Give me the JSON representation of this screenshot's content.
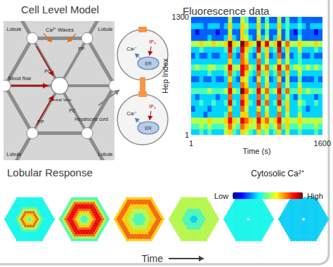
{
  "cell_level_model": {
    "title": "Cell Level Model",
    "labels": {
      "lobule": "Lobule",
      "ca_waves": "Ca²⁺ Waves",
      "blood_flow": "Blood flow",
      "central_vein": "Central Vein",
      "periportal": "PP",
      "pericentral": "PC",
      "hepatocyte_cord": "Hepatocyte cord",
      "calcium": "Ca²⁺",
      "ip3": "IP₃",
      "er": "ER"
    }
  },
  "chart_data": {
    "type": "heatmap",
    "title": "Fluorescence data",
    "x_label": "Time (s)",
    "y_label": "Hep Index",
    "xlim": [
      1,
      1600
    ],
    "xticks": [
      1,
      1600
    ],
    "ylim": [
      1,
      1300
    ],
    "yticks": [
      1,
      1300
    ],
    "color_label": "Cytosolic Ca²⁺",
    "color_range": [
      0,
      9
    ],
    "color_ticks": [
      {
        "value": 0,
        "label": "Low"
      },
      {
        "value": 9,
        "label": "High"
      }
    ],
    "cells": [
      [
        3,
        3,
        4,
        3,
        4,
        3,
        3,
        3,
        5,
        6,
        4,
        3,
        6,
        5,
        4,
        3,
        6,
        4,
        5,
        3,
        4,
        6,
        3,
        5,
        3,
        3,
        4,
        3,
        3,
        3,
        4,
        3
      ],
      [
        4,
        4,
        5,
        4,
        5,
        4,
        4,
        4,
        5,
        7,
        5,
        4,
        7,
        6,
        5,
        5,
        7,
        5,
        6,
        4,
        5,
        7,
        4,
        6,
        4,
        4,
        5,
        4,
        4,
        4,
        5,
        4
      ],
      [
        5,
        5,
        5,
        5,
        6,
        5,
        5,
        5,
        6,
        8,
        6,
        5,
        8,
        7,
        6,
        5,
        8,
        6,
        7,
        5,
        6,
        8,
        5,
        6,
        5,
        5,
        6,
        5,
        5,
        5,
        5,
        5
      ],
      [
        3,
        3,
        3,
        2,
        3,
        3,
        3,
        3,
        4,
        7,
        3,
        3,
        6,
        6,
        3,
        3,
        7,
        3,
        6,
        3,
        3,
        7,
        3,
        5,
        3,
        3,
        5,
        3,
        3,
        3,
        3,
        3
      ],
      [
        2,
        3,
        3,
        3,
        2,
        3,
        3,
        3,
        3,
        6,
        3,
        3,
        7,
        5,
        3,
        3,
        6,
        3,
        5,
        3,
        3,
        6,
        3,
        6,
        3,
        3,
        4,
        3,
        2,
        3,
        3,
        3
      ],
      [
        3,
        3,
        4,
        3,
        3,
        4,
        3,
        3,
        4,
        8,
        4,
        3,
        8,
        6,
        4,
        3,
        8,
        4,
        7,
        3,
        4,
        8,
        4,
        6,
        3,
        3,
        5,
        4,
        3,
        3,
        4,
        3
      ],
      [
        3,
        2,
        3,
        3,
        3,
        3,
        2,
        3,
        3,
        7,
        3,
        3,
        7,
        6,
        3,
        3,
        7,
        3,
        6,
        3,
        3,
        7,
        3,
        5,
        3,
        2,
        4,
        3,
        3,
        3,
        2,
        3
      ],
      [
        4,
        4,
        4,
        4,
        5,
        4,
        4,
        4,
        5,
        8,
        5,
        4,
        9,
        7,
        5,
        4,
        8,
        5,
        7,
        4,
        5,
        8,
        4,
        7,
        4,
        4,
        6,
        4,
        5,
        4,
        4,
        4
      ],
      [
        3,
        3,
        3,
        3,
        3,
        3,
        3,
        3,
        3,
        7,
        3,
        3,
        7,
        6,
        3,
        3,
        7,
        3,
        6,
        3,
        3,
        7,
        3,
        5,
        3,
        3,
        5,
        3,
        3,
        3,
        3,
        3
      ],
      [
        2,
        2,
        3,
        2,
        2,
        3,
        2,
        2,
        3,
        6,
        3,
        2,
        6,
        5,
        3,
        2,
        6,
        3,
        5,
        2,
        3,
        6,
        2,
        5,
        2,
        2,
        4,
        2,
        2,
        2,
        3,
        2
      ],
      [
        3,
        3,
        3,
        3,
        4,
        3,
        3,
        3,
        4,
        7,
        4,
        3,
        8,
        6,
        4,
        3,
        7,
        4,
        6,
        3,
        4,
        7,
        3,
        6,
        3,
        3,
        5,
        3,
        3,
        3,
        3,
        3
      ],
      [
        4,
        5,
        4,
        4,
        5,
        5,
        4,
        4,
        5,
        8,
        5,
        5,
        8,
        7,
        5,
        4,
        8,
        5,
        7,
        4,
        5,
        8,
        5,
        7,
        4,
        5,
        5,
        4,
        5,
        4,
        5,
        4
      ],
      [
        3,
        3,
        3,
        3,
        3,
        3,
        3,
        3,
        3,
        6,
        3,
        3,
        7,
        6,
        3,
        3,
        7,
        3,
        5,
        3,
        3,
        6,
        3,
        5,
        3,
        3,
        4,
        3,
        3,
        3,
        3,
        3
      ],
      [
        2,
        3,
        2,
        2,
        3,
        2,
        2,
        3,
        3,
        7,
        3,
        2,
        7,
        5,
        3,
        2,
        6,
        3,
        6,
        2,
        3,
        7,
        2,
        5,
        2,
        3,
        4,
        2,
        2,
        3,
        2,
        2
      ],
      [
        3,
        3,
        4,
        3,
        3,
        3,
        3,
        3,
        4,
        8,
        4,
        3,
        8,
        6,
        4,
        3,
        8,
        4,
        6,
        3,
        4,
        8,
        3,
        6,
        3,
        3,
        5,
        3,
        3,
        3,
        4,
        3
      ],
      [
        5,
        5,
        6,
        5,
        5,
        6,
        5,
        5,
        6,
        9,
        6,
        5,
        9,
        7,
        6,
        5,
        9,
        6,
        8,
        5,
        6,
        9,
        5,
        7,
        5,
        5,
        6,
        5,
        5,
        5,
        6,
        5
      ],
      [
        2,
        2,
        2,
        2,
        3,
        2,
        2,
        2,
        3,
        6,
        3,
        2,
        6,
        5,
        3,
        2,
        6,
        3,
        5,
        2,
        3,
        6,
        2,
        4,
        2,
        2,
        4,
        2,
        2,
        2,
        2,
        2
      ],
      [
        2,
        1,
        2,
        2,
        2,
        2,
        1,
        2,
        2,
        5,
        2,
        2,
        6,
        4,
        2,
        2,
        5,
        2,
        4,
        2,
        2,
        5,
        2,
        4,
        2,
        1,
        3,
        2,
        2,
        2,
        1,
        2
      ],
      [
        3,
        3,
        3,
        2,
        3,
        3,
        3,
        2,
        3,
        6,
        3,
        3,
        6,
        5,
        3,
        3,
        6,
        3,
        5,
        3,
        3,
        6,
        3,
        4,
        3,
        3,
        4,
        3,
        2,
        3,
        3,
        3
      ],
      [
        2,
        2,
        2,
        2,
        2,
        2,
        2,
        2,
        2,
        5,
        2,
        2,
        5,
        4,
        2,
        2,
        5,
        2,
        4,
        2,
        2,
        5,
        2,
        4,
        2,
        2,
        3,
        2,
        2,
        2,
        2,
        2
      ]
    ]
  },
  "lobular_response": {
    "title": "Lobular Response",
    "axis_label": "Time",
    "snapshots": [
      {
        "rings": [
          4,
          5,
          6,
          7,
          5,
          4,
          3.5,
          3.5,
          3.5,
          3.5
        ]
      },
      {
        "rings": [
          4,
          4,
          5,
          6,
          7,
          8,
          8,
          7,
          5,
          4
        ]
      },
      {
        "rings": [
          4,
          4,
          4,
          5,
          5,
          6,
          6,
          7,
          7,
          6
        ]
      },
      {
        "rings": [
          3,
          3,
          4,
          4,
          4,
          5,
          5,
          5,
          5,
          5
        ]
      },
      {
        "rings": [
          null,
          3.5,
          3.5,
          3.5,
          3.5,
          3.5,
          3.5,
          3.5,
          3.5,
          3.5
        ]
      },
      {
        "rings": [
          null,
          3,
          3,
          3,
          3,
          3,
          3,
          3,
          3,
          3
        ]
      }
    ]
  }
}
